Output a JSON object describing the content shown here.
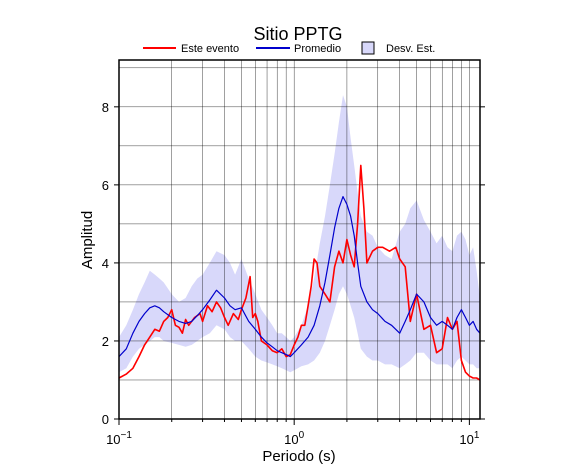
{
  "chart_data": {
    "type": "line",
    "title": "Sitio PPTG",
    "xlabel": "Periodo (s)",
    "ylabel": "Amplitud",
    "x_scale": "log",
    "xlim": [
      0.1,
      11.5
    ],
    "ylim": [
      0,
      9.2
    ],
    "grid": true,
    "legend_placement": "top",
    "x_ticks": [
      0.1,
      1,
      10
    ],
    "x_tick_labels": {
      "base": "10",
      "exponents": [
        "−1",
        "0",
        "1"
      ]
    },
    "y_ticks": [
      0,
      2,
      4,
      6,
      8
    ],
    "y_tick_labels": [
      "0",
      "2",
      "4",
      "6",
      "8"
    ],
    "legend": {
      "este_evento": "Este evento",
      "promedio": "Promedio",
      "desv_est": "Desv. Est."
    },
    "colors": {
      "este_evento": "#ff0000",
      "promedio": "#0000cc",
      "desv_band": "#d8d8fa",
      "grid": "#000000"
    },
    "series": [
      {
        "name": "Este evento",
        "x": [
          0.1,
          0.11,
          0.12,
          0.13,
          0.14,
          0.15,
          0.16,
          0.17,
          0.18,
          0.19,
          0.2,
          0.21,
          0.22,
          0.23,
          0.24,
          0.25,
          0.27,
          0.29,
          0.3,
          0.32,
          0.34,
          0.36,
          0.38,
          0.4,
          0.42,
          0.45,
          0.48,
          0.5,
          0.53,
          0.56,
          0.58,
          0.6,
          0.62,
          0.65,
          0.7,
          0.75,
          0.8,
          0.85,
          0.9,
          0.95,
          1.0,
          1.05,
          1.1,
          1.15,
          1.2,
          1.25,
          1.3,
          1.35,
          1.4,
          1.5,
          1.6,
          1.7,
          1.8,
          1.9,
          2.0,
          2.1,
          2.2,
          2.3,
          2.4,
          2.5,
          2.6,
          2.8,
          3.0,
          3.2,
          3.5,
          3.8,
          4.0,
          4.3,
          4.6,
          5.0,
          5.5,
          6.0,
          6.5,
          7.0,
          7.5,
          8.0,
          8.5,
          9.0,
          9.5,
          10.0,
          10.5,
          11.0,
          11.5
        ],
        "y": [
          1.05,
          1.15,
          1.3,
          1.6,
          1.9,
          2.1,
          2.3,
          2.25,
          2.5,
          2.6,
          2.8,
          2.4,
          2.35,
          2.2,
          2.55,
          2.4,
          2.6,
          2.7,
          2.5,
          2.9,
          2.75,
          3.0,
          2.85,
          2.6,
          2.4,
          2.7,
          2.55,
          2.8,
          3.1,
          3.65,
          2.6,
          2.7,
          2.5,
          2.0,
          1.9,
          1.75,
          1.7,
          1.8,
          1.6,
          1.65,
          1.9,
          2.1,
          2.4,
          2.4,
          2.9,
          3.4,
          4.1,
          4.0,
          3.4,
          3.2,
          3.0,
          3.9,
          4.3,
          4.0,
          4.6,
          4.2,
          3.9,
          5.0,
          6.5,
          5.4,
          4.0,
          4.3,
          4.4,
          4.4,
          4.3,
          4.4,
          4.1,
          3.9,
          2.5,
          3.2,
          2.3,
          2.4,
          1.7,
          1.8,
          2.6,
          2.3,
          2.5,
          1.5,
          1.2,
          1.1,
          1.05,
          1.05,
          1.0
        ]
      },
      {
        "name": "Promedio",
        "x": [
          0.1,
          0.11,
          0.12,
          0.13,
          0.14,
          0.15,
          0.16,
          0.17,
          0.18,
          0.2,
          0.22,
          0.24,
          0.26,
          0.28,
          0.3,
          0.33,
          0.36,
          0.4,
          0.43,
          0.46,
          0.5,
          0.55,
          0.6,
          0.65,
          0.7,
          0.75,
          0.8,
          0.85,
          0.9,
          0.95,
          1.0,
          1.1,
          1.2,
          1.3,
          1.4,
          1.5,
          1.6,
          1.7,
          1.8,
          1.9,
          2.0,
          2.1,
          2.2,
          2.3,
          2.4,
          2.6,
          2.8,
          3.0,
          3.3,
          3.6,
          4.0,
          4.3,
          4.6,
          5.0,
          5.5,
          6.0,
          6.5,
          7.0,
          7.5,
          8.0,
          8.5,
          9.0,
          9.5,
          10.0,
          10.5,
          11.0,
          11.5
        ],
        "y": [
          1.6,
          1.8,
          2.2,
          2.5,
          2.7,
          2.85,
          2.9,
          2.85,
          2.75,
          2.6,
          2.5,
          2.45,
          2.5,
          2.65,
          2.8,
          3.05,
          3.3,
          3.1,
          2.9,
          2.8,
          2.85,
          2.5,
          2.3,
          2.1,
          1.95,
          1.85,
          1.75,
          1.7,
          1.65,
          1.6,
          1.7,
          1.9,
          2.1,
          2.4,
          2.9,
          3.5,
          4.2,
          4.9,
          5.4,
          5.7,
          5.5,
          5.2,
          4.7,
          4.0,
          3.4,
          3.0,
          2.8,
          2.7,
          2.5,
          2.4,
          2.2,
          2.5,
          2.8,
          3.2,
          3.0,
          2.6,
          2.4,
          2.5,
          2.4,
          2.3,
          2.6,
          2.8,
          2.6,
          2.4,
          2.5,
          2.3,
          2.2
        ]
      },
      {
        "name": "Desv. Est.",
        "x": [
          0.1,
          0.11,
          0.12,
          0.13,
          0.14,
          0.15,
          0.16,
          0.17,
          0.18,
          0.2,
          0.22,
          0.24,
          0.26,
          0.28,
          0.3,
          0.33,
          0.36,
          0.4,
          0.43,
          0.46,
          0.5,
          0.55,
          0.6,
          0.65,
          0.7,
          0.75,
          0.8,
          0.85,
          0.9,
          0.95,
          1.0,
          1.1,
          1.2,
          1.3,
          1.4,
          1.5,
          1.6,
          1.7,
          1.8,
          1.9,
          2.0,
          2.1,
          2.2,
          2.3,
          2.4,
          2.6,
          2.8,
          3.0,
          3.3,
          3.6,
          4.0,
          4.3,
          4.6,
          5.0,
          5.5,
          6.0,
          6.5,
          7.0,
          7.5,
          8.0,
          8.5,
          9.0,
          9.5,
          10.0,
          10.5,
          11.0,
          11.5
        ],
        "upper": [
          2.1,
          2.4,
          2.8,
          3.2,
          3.5,
          3.8,
          3.7,
          3.6,
          3.5,
          3.2,
          3.0,
          3.1,
          3.4,
          3.6,
          3.7,
          4.0,
          4.3,
          4.2,
          4.0,
          3.7,
          4.1,
          3.6,
          3.2,
          2.8,
          2.6,
          2.4,
          2.2,
          2.2,
          2.1,
          2.0,
          2.1,
          2.4,
          2.9,
          3.6,
          4.5,
          5.2,
          6.0,
          6.8,
          7.6,
          8.3,
          8.0,
          7.2,
          6.5,
          5.8,
          5.2,
          4.8,
          4.7,
          4.4,
          4.2,
          4.1,
          4.8,
          5.0,
          5.4,
          5.6,
          5.1,
          4.8,
          4.5,
          4.7,
          4.4,
          4.3,
          4.7,
          4.8,
          4.6,
          4.2,
          4.4,
          3.8,
          3.1
        ]
      },
      {
        "name": "Desv. Est. (inferior)",
        "x": [
          0.1,
          0.11,
          0.12,
          0.13,
          0.14,
          0.15,
          0.16,
          0.17,
          0.18,
          0.2,
          0.22,
          0.24,
          0.26,
          0.28,
          0.3,
          0.33,
          0.36,
          0.4,
          0.43,
          0.46,
          0.5,
          0.55,
          0.6,
          0.65,
          0.7,
          0.75,
          0.8,
          0.85,
          0.9,
          0.95,
          1.0,
          1.1,
          1.2,
          1.3,
          1.4,
          1.5,
          1.6,
          1.7,
          1.8,
          1.9,
          2.0,
          2.1,
          2.2,
          2.3,
          2.4,
          2.6,
          2.8,
          3.0,
          3.3,
          3.6,
          4.0,
          4.3,
          4.6,
          5.0,
          5.5,
          6.0,
          6.5,
          7.0,
          7.5,
          8.0,
          8.5,
          9.0,
          9.5,
          10.0,
          10.5,
          11.0,
          11.5
        ],
        "lower": [
          1.2,
          1.3,
          1.6,
          1.8,
          1.9,
          2.0,
          2.1,
          2.1,
          2.0,
          1.95,
          1.9,
          1.85,
          1.9,
          2.0,
          2.1,
          2.2,
          2.4,
          2.3,
          2.1,
          2.0,
          2.0,
          1.8,
          1.6,
          1.5,
          1.45,
          1.4,
          1.35,
          1.3,
          1.25,
          1.2,
          1.25,
          1.35,
          1.4,
          1.5,
          1.7,
          2.0,
          2.4,
          2.8,
          3.2,
          3.4,
          3.2,
          2.9,
          2.6,
          2.2,
          1.8,
          1.6,
          1.5,
          1.5,
          1.4,
          1.4,
          1.3,
          1.4,
          1.5,
          1.7,
          1.7,
          1.5,
          1.4,
          1.4,
          1.4,
          1.3,
          1.5,
          1.6,
          1.5,
          1.4,
          1.4,
          1.3,
          1.3
        ]
      }
    ]
  }
}
